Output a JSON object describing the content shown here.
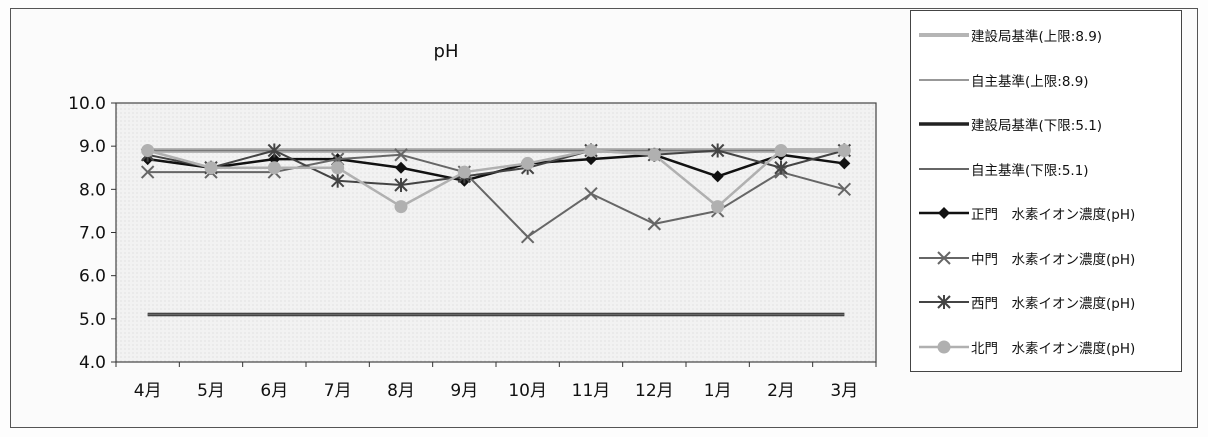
{
  "chart_data": {
    "type": "line",
    "title": "pH",
    "categories": [
      "4月",
      "5月",
      "6月",
      "7月",
      "8月",
      "9月",
      "10月",
      "11月",
      "12月",
      "1月",
      "2月",
      "3月"
    ],
    "y_ticks": [
      "4.0",
      "5.0",
      "6.0",
      "7.0",
      "8.0",
      "9.0",
      "10.0"
    ],
    "ylim": [
      4.0,
      10.0
    ],
    "grid": false,
    "legend_position": "right",
    "series": [
      {
        "name": "建設局基準(上限:8.9)",
        "values": [
          8.9,
          8.9,
          8.9,
          8.9,
          8.9,
          8.9,
          8.9,
          8.9,
          8.9,
          8.9,
          8.9,
          8.9
        ],
        "color": "#b5b5b5",
        "width": 5,
        "marker": "none"
      },
      {
        "name": "自主基準(上限:8.9)",
        "values": [
          8.9,
          8.9,
          8.9,
          8.9,
          8.9,
          8.9,
          8.9,
          8.9,
          8.9,
          8.9,
          8.9,
          8.9
        ],
        "color": "#777777",
        "width": 1.5,
        "marker": "none"
      },
      {
        "name": "建設局基準(下限:5.1)",
        "values": [
          5.1,
          5.1,
          5.1,
          5.1,
          5.1,
          5.1,
          5.1,
          5.1,
          5.1,
          5.1,
          5.1,
          5.1
        ],
        "color": "#222222",
        "width": 3.5,
        "marker": "none"
      },
      {
        "name": "自主基準(下限:5.1)",
        "values": [
          5.1,
          5.1,
          5.1,
          5.1,
          5.1,
          5.1,
          5.1,
          5.1,
          5.1,
          5.1,
          5.1,
          5.1
        ],
        "color": "#666666",
        "width": 2,
        "marker": "none"
      },
      {
        "name": "正門　水素イオン濃度(pH)",
        "values": [
          8.7,
          8.5,
          8.7,
          8.7,
          8.5,
          8.2,
          8.6,
          8.7,
          8.8,
          8.3,
          8.8,
          8.6
        ],
        "color": "#111111",
        "width": 2.5,
        "marker": "diamond"
      },
      {
        "name": "中門　水素イオン濃度(pH)",
        "values": [
          8.4,
          8.4,
          8.4,
          8.7,
          8.8,
          8.4,
          6.9,
          7.9,
          7.2,
          7.5,
          8.4,
          8.0
        ],
        "color": "#666666",
        "width": 2,
        "marker": "cross"
      },
      {
        "name": "西門　水素イオン濃度(pH)",
        "values": [
          8.8,
          8.5,
          8.9,
          8.2,
          8.1,
          8.3,
          8.5,
          8.9,
          8.8,
          8.9,
          8.5,
          8.9
        ],
        "color": "#444444",
        "width": 2,
        "marker": "star"
      },
      {
        "name": "北門　水素イオン濃度(pH)",
        "values": [
          8.9,
          8.5,
          8.5,
          8.5,
          7.6,
          8.4,
          8.6,
          8.9,
          8.8,
          7.6,
          8.9,
          8.9
        ],
        "color": "#b0b0b0",
        "width": 2.5,
        "marker": "circle"
      }
    ]
  }
}
